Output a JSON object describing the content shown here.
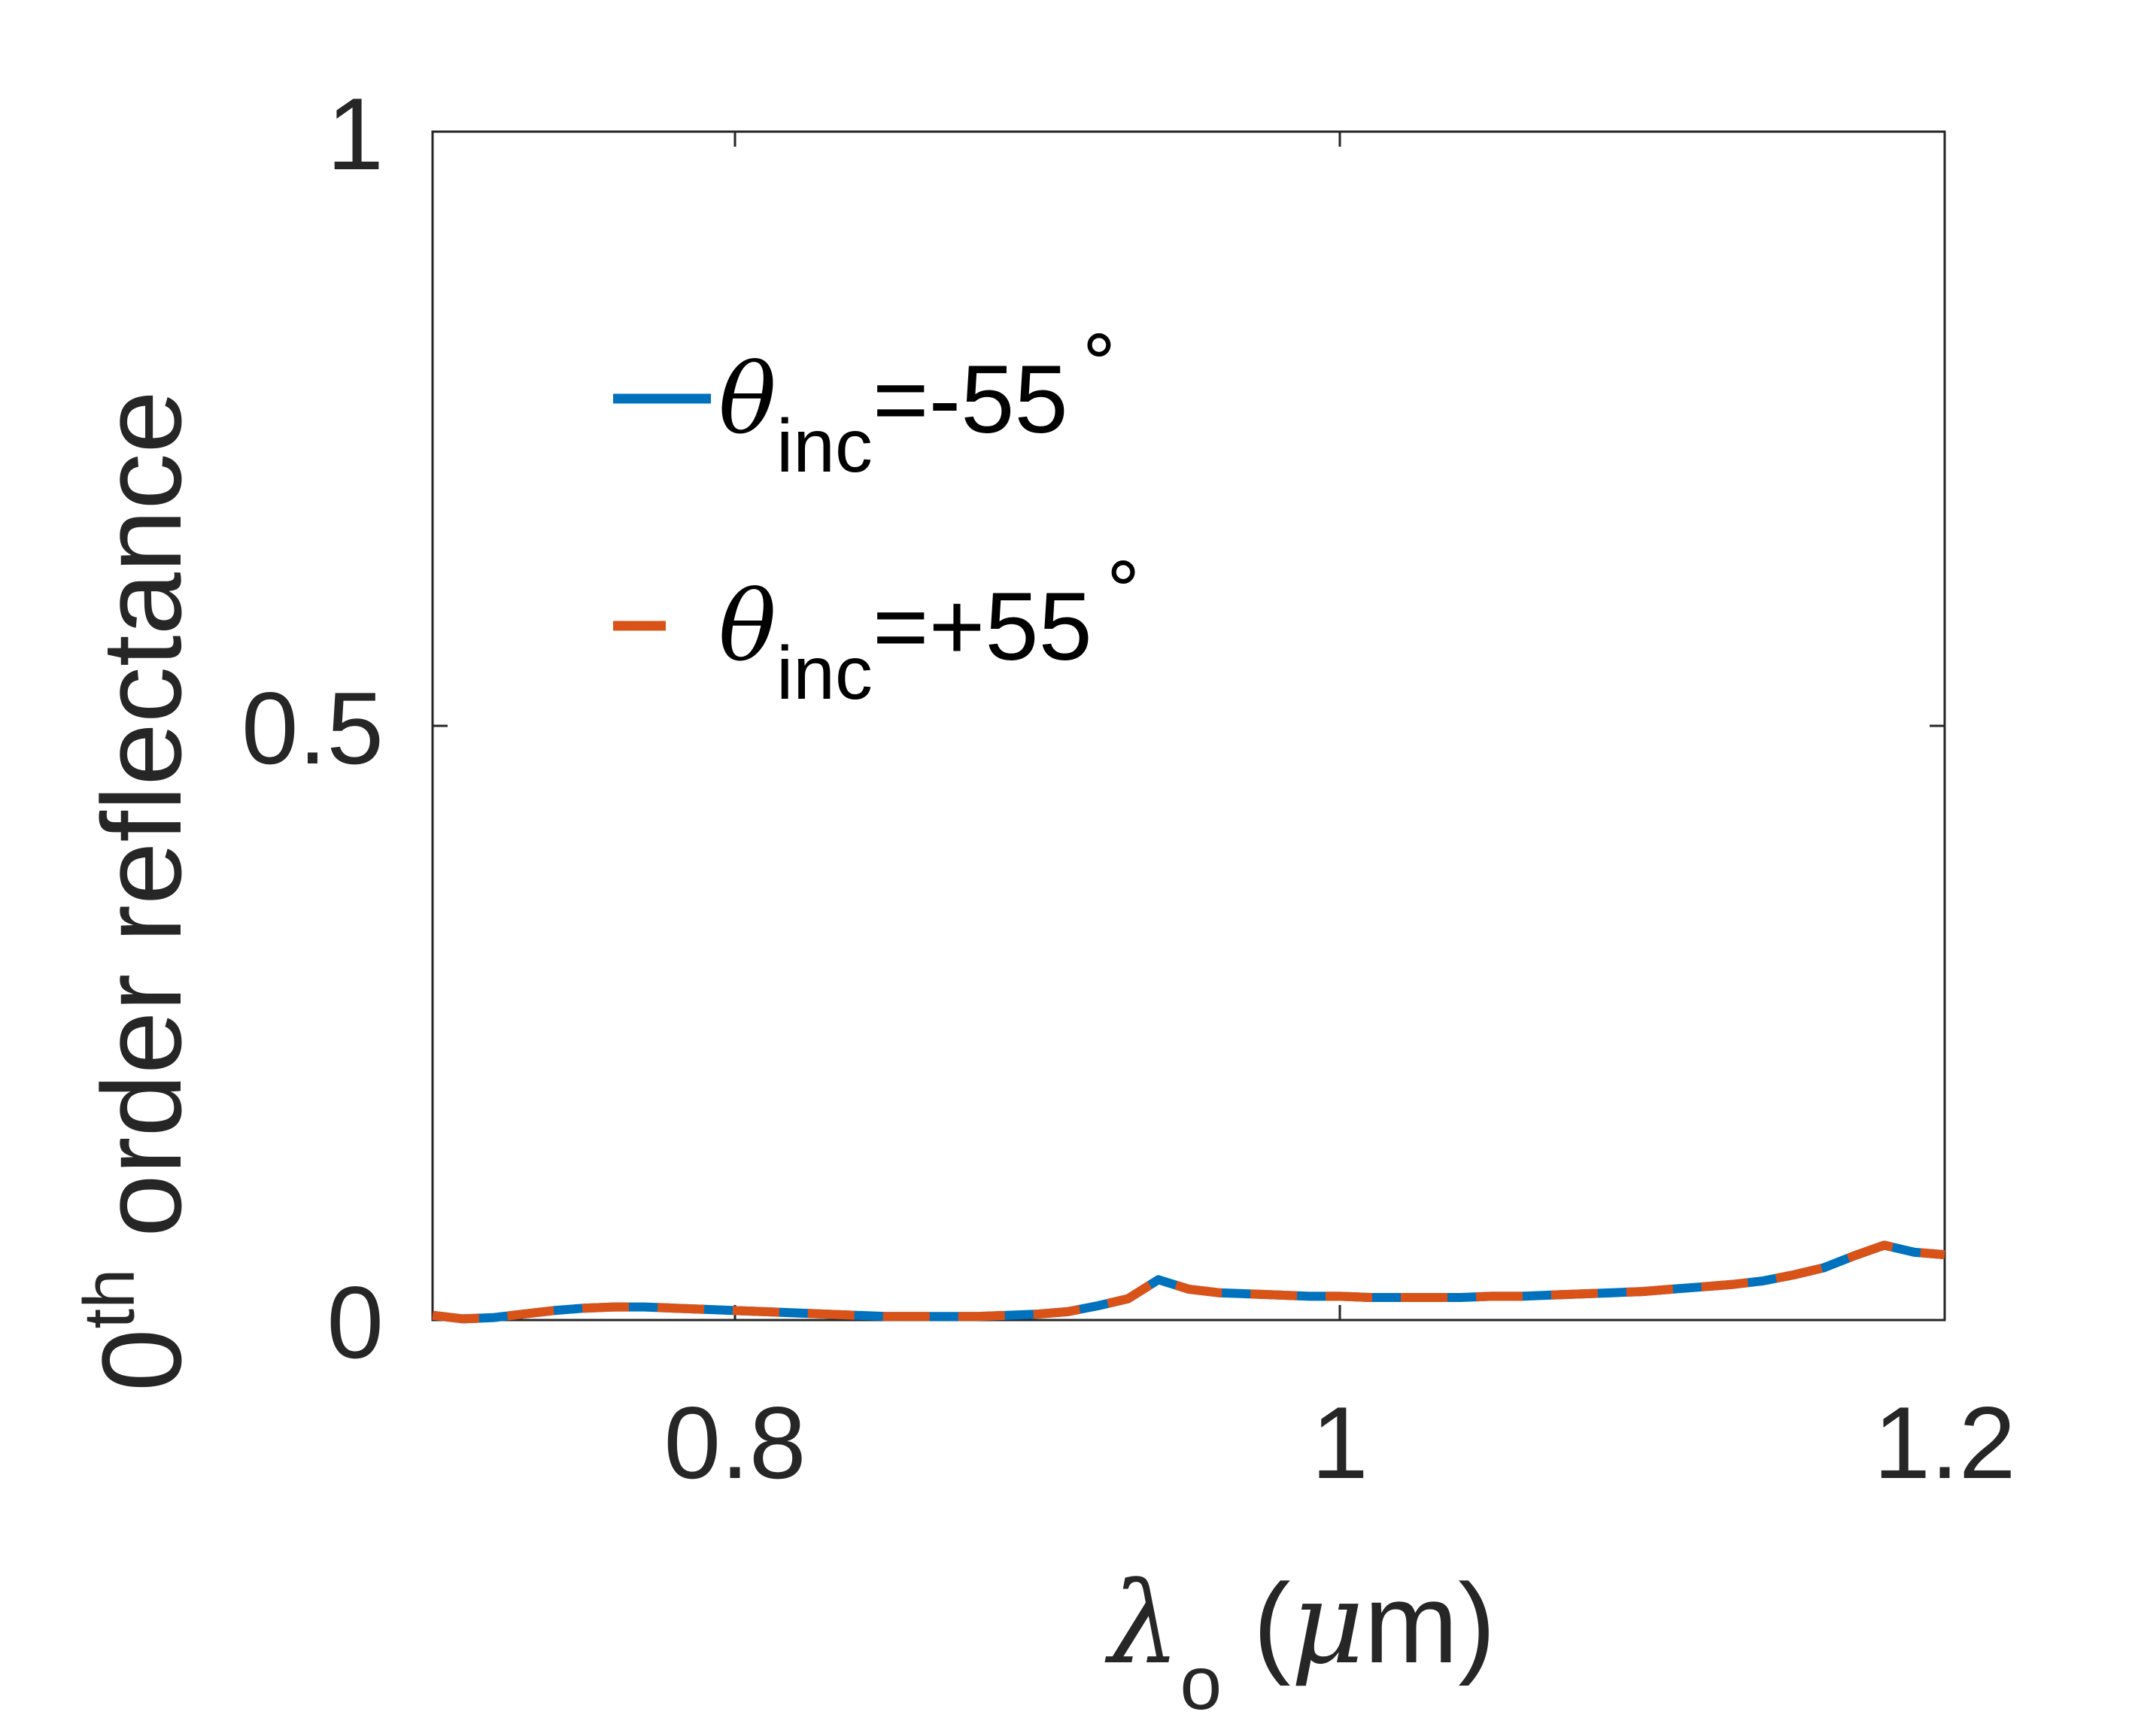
{
  "chart_data": {
    "type": "line",
    "title": "",
    "xlabel": {
      "symbol": "λ",
      "subscript": "o",
      "rest": " (",
      "unit_symbol": "μ",
      "unit_rest": "m)"
    },
    "ylabel": {
      "base": "0",
      "superscript": "th",
      "rest": " order reflectance"
    },
    "xlim": [
      0.7,
      1.2
    ],
    "ylim": [
      0,
      1
    ],
    "xticks": [
      0.8,
      1.0,
      1.2
    ],
    "xtick_labels": [
      "0.8",
      "1",
      "1.2"
    ],
    "yticks": [
      0,
      0.5,
      1
    ],
    "ytick_labels": [
      "0",
      "0.5",
      "1"
    ],
    "grid": false,
    "legend": {
      "position": "upper-left",
      "box": false
    },
    "x": [
      0.7,
      0.71,
      0.72,
      0.73,
      0.74,
      0.75,
      0.76,
      0.77,
      0.78,
      0.79,
      0.8,
      0.81,
      0.82,
      0.83,
      0.84,
      0.85,
      0.86,
      0.87,
      0.88,
      0.89,
      0.9,
      0.91,
      0.92,
      0.93,
      0.94,
      0.95,
      0.96,
      0.97,
      0.98,
      0.99,
      1.0,
      1.01,
      1.02,
      1.03,
      1.04,
      1.05,
      1.06,
      1.07,
      1.08,
      1.09,
      1.1,
      1.11,
      1.12,
      1.13,
      1.14,
      1.15,
      1.16,
      1.17,
      1.18,
      1.19,
      1.2
    ],
    "series": [
      {
        "label_symbol": "θ",
        "label_subscript": "inc",
        "label_rest": "=-55",
        "label_degree": "∘",
        "color": "#0072BD",
        "dash": "solid",
        "values": [
          0.004,
          0.001,
          0.002,
          0.005,
          0.008,
          0.01,
          0.011,
          0.011,
          0.01,
          0.009,
          0.008,
          0.007,
          0.006,
          0.005,
          0.004,
          0.003,
          0.003,
          0.003,
          0.003,
          0.004,
          0.005,
          0.007,
          0.012,
          0.018,
          0.034,
          0.026,
          0.023,
          0.022,
          0.021,
          0.02,
          0.02,
          0.019,
          0.019,
          0.019,
          0.019,
          0.02,
          0.02,
          0.021,
          0.022,
          0.023,
          0.024,
          0.026,
          0.028,
          0.03,
          0.033,
          0.038,
          0.044,
          0.054,
          0.063,
          0.057,
          0.055
        ]
      },
      {
        "label_symbol": "θ",
        "label_subscript": "inc",
        "label_rest": "=+55",
        "label_degree": "∘",
        "color": "#D95319",
        "dash": "dashed",
        "values": [
          0.004,
          0.001,
          0.002,
          0.005,
          0.008,
          0.01,
          0.011,
          0.011,
          0.01,
          0.009,
          0.008,
          0.007,
          0.006,
          0.005,
          0.004,
          0.003,
          0.003,
          0.003,
          0.003,
          0.004,
          0.005,
          0.007,
          0.012,
          0.018,
          0.034,
          0.026,
          0.023,
          0.022,
          0.021,
          0.02,
          0.02,
          0.019,
          0.019,
          0.019,
          0.019,
          0.02,
          0.02,
          0.021,
          0.022,
          0.023,
          0.024,
          0.026,
          0.028,
          0.03,
          0.033,
          0.038,
          0.044,
          0.054,
          0.063,
          0.057,
          0.055
        ]
      }
    ]
  }
}
